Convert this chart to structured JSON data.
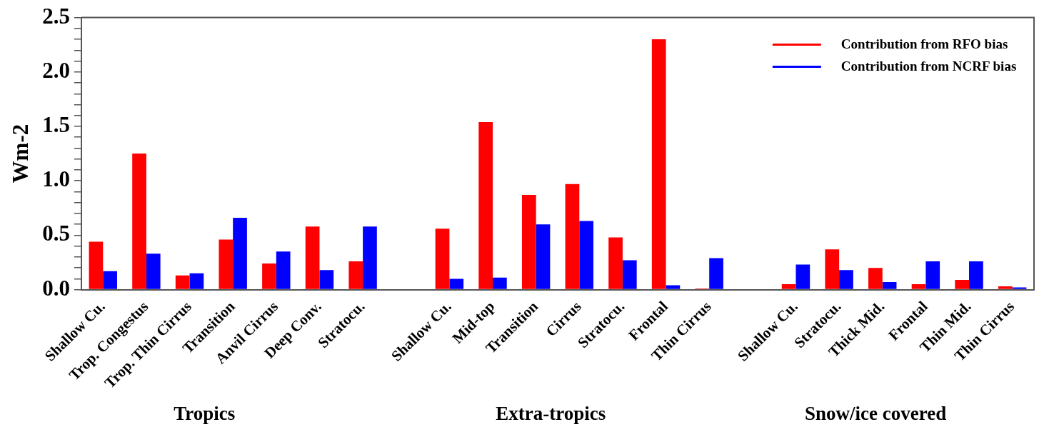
{
  "chart_data": {
    "type": "bar",
    "ylabel": "Wm-2",
    "categories": [
      "Shallow Cu.",
      "Trop. Congestus",
      "Trop. Thin Cirrus",
      "Transition",
      "Anvil Cirrus",
      "Deep Conv.",
      "Stratocu.",
      null,
      "Shallow Cu.",
      "Mid-top",
      "Transition",
      "Cirrus",
      "Stratocu.",
      "Frontal",
      "Thin Cirrus",
      null,
      "Shallow Cu.",
      "Stratocu.",
      "Thick Mid.",
      "Frontal",
      "Thin Mid.",
      "Thin Cirrus"
    ],
    "series": [
      {
        "name": "Contribution from RFO bias",
        "color": "#ff0000",
        "values": [
          0.44,
          1.25,
          0.13,
          0.46,
          0.24,
          0.58,
          0.26,
          0,
          0.56,
          1.54,
          0.87,
          0.97,
          0.48,
          2.3,
          0.01,
          0,
          0.05,
          0.37,
          0.2,
          0.05,
          0.09,
          0.03
        ]
      },
      {
        "name": "Contribution from NCRF bias",
        "color": "#0000ff",
        "values": [
          0.17,
          0.33,
          0.15,
          0.66,
          0.35,
          0.18,
          0.58,
          0,
          0.1,
          0.11,
          0.6,
          0.63,
          0.27,
          0.04,
          0.29,
          0,
          0.23,
          0.18,
          0.07,
          0.26,
          0.26,
          0.02
        ]
      }
    ],
    "ylim": [
      0,
      2.5
    ],
    "yticks": [
      {
        "value": 0,
        "label": "0.0"
      },
      {
        "value": 0.1,
        "label": null
      },
      {
        "value": 0.2,
        "label": null
      },
      {
        "value": 0.3,
        "label": null
      },
      {
        "value": 0.4,
        "label": null
      },
      {
        "value": 0.5,
        "label": "0.5"
      },
      {
        "value": 0.6,
        "label": null
      },
      {
        "value": 0.7,
        "label": null
      },
      {
        "value": 0.8,
        "label": null
      },
      {
        "value": 0.9,
        "label": null
      },
      {
        "value": 1,
        "label": "1.0"
      },
      {
        "value": 1.1,
        "label": null
      },
      {
        "value": 1.2,
        "label": null
      },
      {
        "value": 1.3,
        "label": null
      },
      {
        "value": 1.4,
        "label": null
      },
      {
        "value": 1.5,
        "label": "1.5"
      },
      {
        "value": 1.6,
        "label": null
      },
      {
        "value": 1.7,
        "label": null
      },
      {
        "value": 1.8,
        "label": null
      },
      {
        "value": 1.9,
        "label": null
      },
      {
        "value": 2,
        "label": "2.0"
      },
      {
        "value": 2.1,
        "label": null
      },
      {
        "value": 2.2,
        "label": null
      },
      {
        "value": 2.3,
        "label": null
      },
      {
        "value": 2.4,
        "label": null
      },
      {
        "value": 2.5,
        "label": "2.5"
      }
    ],
    "legend": "top right",
    "annotations": [
      "Tropics",
      "Extra-tropics",
      "Snow/ice covered"
    ]
  }
}
